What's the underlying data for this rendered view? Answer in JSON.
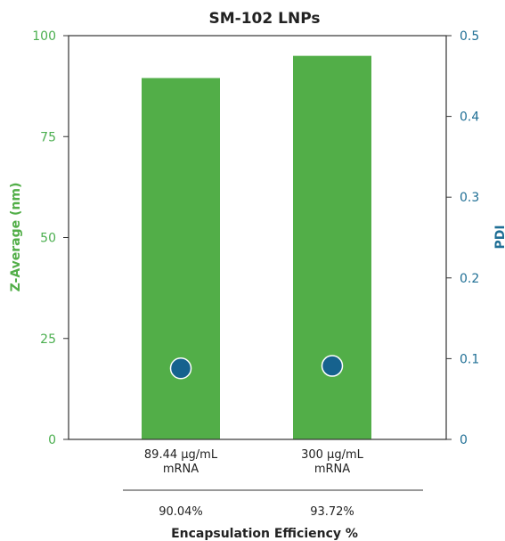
{
  "chart_data": {
    "type": "bar",
    "title": "SM-102 LNPs",
    "categories": [
      [
        "89.44 µg/mL",
        "mRNA"
      ],
      [
        "300 µg/mL",
        "mRNA"
      ]
    ],
    "series": [
      {
        "name": "Z-Average (nm)",
        "type": "bar",
        "axis": "left",
        "values": [
          89.5,
          95.0
        ],
        "color": "#52ae48"
      },
      {
        "name": "PDI",
        "type": "scatter",
        "axis": "right",
        "values": [
          0.088,
          0.091
        ],
        "color": "#16628e"
      }
    ],
    "y_left": {
      "label": "Z-Average (nm)",
      "ylim": [
        0,
        100
      ],
      "ticks": [
        0,
        25,
        50,
        75,
        100
      ],
      "color": "#52ae48"
    },
    "y_right": {
      "label": "PDI",
      "ylim": [
        0,
        0.5
      ],
      "ticks": [
        "0",
        "0.1",
        "0.2",
        "0.3",
        "0.4",
        "0.5"
      ],
      "color": "#1f6f95"
    },
    "efficiency": {
      "label": "Encapsulation Efficiency %",
      "values": [
        "90.04%",
        "93.72%"
      ]
    }
  }
}
